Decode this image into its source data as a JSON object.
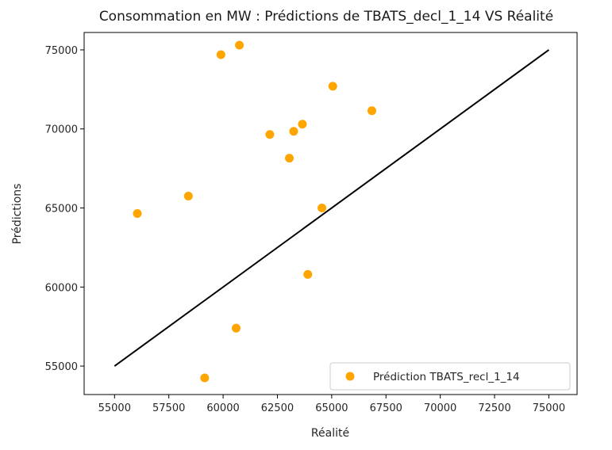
{
  "chart_data": {
    "type": "scatter",
    "title": "Consommation en MW : Prédictions de TBATS_decl_1_14 VS Réalité",
    "xlabel": "Réalité",
    "ylabel": "Prédictions",
    "xlim": [
      53600,
      76300
    ],
    "ylim": [
      53200,
      76100
    ],
    "xticks": [
      55000,
      57500,
      60000,
      62500,
      65000,
      67500,
      70000,
      72500,
      75000
    ],
    "yticks": [
      55000,
      60000,
      65000,
      70000,
      75000
    ],
    "grid": false,
    "legend_position": "bottom-right",
    "series": [
      {
        "name": "Prédiction TBATS_recl_1_14",
        "color": "#FFA500",
        "marker": "circle",
        "points": [
          {
            "x": 56050,
            "y": 64650
          },
          {
            "x": 58400,
            "y": 65750
          },
          {
            "x": 59150,
            "y": 54250
          },
          {
            "x": 59900,
            "y": 74700
          },
          {
            "x": 60600,
            "y": 57400
          },
          {
            "x": 60750,
            "y": 75300
          },
          {
            "x": 62150,
            "y": 69650
          },
          {
            "x": 63050,
            "y": 68150
          },
          {
            "x": 63250,
            "y": 69850
          },
          {
            "x": 63650,
            "y": 70300
          },
          {
            "x": 63900,
            "y": 60800
          },
          {
            "x": 64550,
            "y": 65000
          },
          {
            "x": 65050,
            "y": 72700
          },
          {
            "x": 66850,
            "y": 71150
          }
        ]
      }
    ],
    "reference_line": {
      "color": "#000000",
      "from": [
        55000,
        55000
      ],
      "to": [
        75000,
        75000
      ]
    }
  }
}
